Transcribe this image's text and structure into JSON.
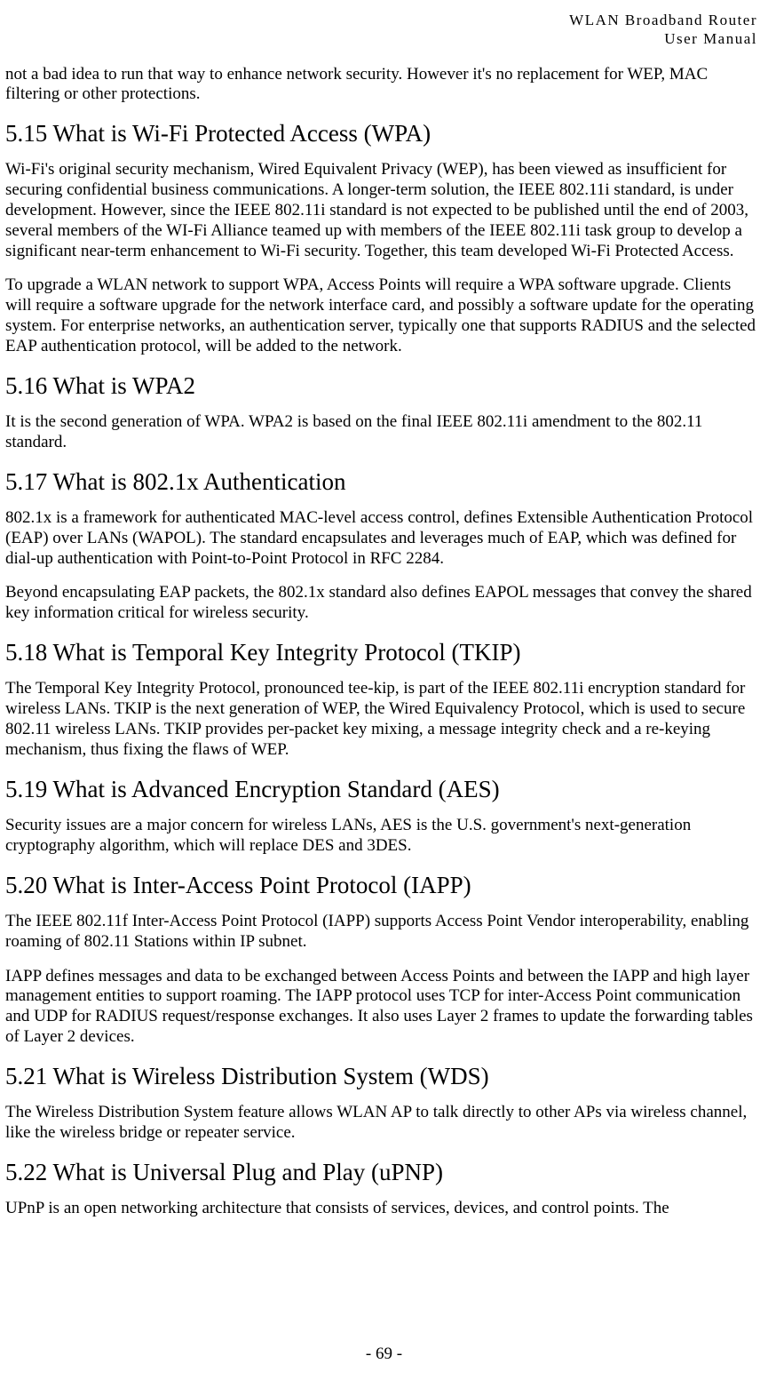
{
  "header": {
    "line1": "WLAN Broadband Router",
    "line2": "User Manual"
  },
  "intro_para": "not a bad idea to run that way to enhance network security. However it's no replacement for WEP, MAC filtering or other protections.",
  "sections": {
    "s515": {
      "heading": "5.15   What is Wi-Fi Protected Access (WPA)",
      "p1": "Wi-Fi's original security mechanism, Wired Equivalent Privacy (WEP), has been viewed as insufficient for securing confidential business communications. A longer-term solution, the IEEE 802.11i standard, is under development. However, since the IEEE 802.11i standard is not expected to be published until the end of 2003, several members of the WI-Fi Alliance teamed up with members of the IEEE 802.11i task group to develop a significant near-term enhancement to Wi-Fi security. Together, this team developed Wi-Fi Protected Access.",
      "p2": "To upgrade a WLAN network to support WPA, Access Points will require a WPA software upgrade. Clients will require a software upgrade for the network interface card, and possibly a software update for the operating system. For enterprise networks, an authentication server, typically one that supports RADIUS and the selected EAP authentication protocol, will be added to the network."
    },
    "s516": {
      "heading": "5.16   What is WPA2",
      "p1": "It is the second generation of WPA. WPA2 is based on the final IEEE 802.11i amendment to the 802.11 standard."
    },
    "s517": {
      "heading": "5.17   What is 802.1x Authentication",
      "p1": "802.1x is a framework for authenticated MAC-level access control, defines Extensible Authentication Protocol (EAP) over LANs (WAPOL). The standard encapsulates and leverages much of EAP, which was defined for dial-up authentication with Point-to-Point Protocol in RFC 2284.",
      "p2": "Beyond encapsulating EAP packets, the 802.1x standard also defines EAPOL messages that convey the shared key information critical for wireless security."
    },
    "s518": {
      "heading": "5.18   What is Temporal Key Integrity Protocol (TKIP)",
      "p1": "The Temporal Key Integrity Protocol, pronounced tee-kip, is part of the IEEE 802.11i encryption standard for wireless LANs. TKIP is the next generation of WEP, the Wired Equivalency Protocol, which is used to secure 802.11 wireless LANs. TKIP provides per-packet key mixing, a message integrity check and a re-keying mechanism, thus fixing the flaws of WEP."
    },
    "s519": {
      "heading": "5.19   What is Advanced Encryption Standard (AES)",
      "p1": "Security issues are a major concern for wireless LANs, AES is the U.S. government's next-generation cryptography algorithm, which will replace DES and 3DES."
    },
    "s520": {
      "heading": "5.20   What is Inter-Access Point Protocol (IAPP)",
      "p1": "The IEEE 802.11f Inter-Access Point Protocol (IAPP) supports Access Point Vendor interoperability, enabling roaming of 802.11 Stations within IP subnet.",
      "p2": "IAPP defines messages and data to be exchanged between Access Points and between the IAPP and high layer management entities to support roaming. The IAPP protocol uses TCP for inter-Access Point communication and UDP for RADIUS request/response exchanges. It also uses Layer 2 frames to update the forwarding tables of Layer 2 devices."
    },
    "s521": {
      "heading": "5.21   What is Wireless Distribution System (WDS)",
      "p1": "The Wireless Distribution System feature allows WLAN AP to talk directly to other APs via wireless channel, like the wireless bridge or repeater service."
    },
    "s522": {
      "heading": "5.22   What is Universal Plug and Play (uPNP)",
      "p1": "UPnP is an open networking architecture that consists of services, devices, and control points. The"
    }
  },
  "footer": {
    "page_number": "- 69 -"
  }
}
